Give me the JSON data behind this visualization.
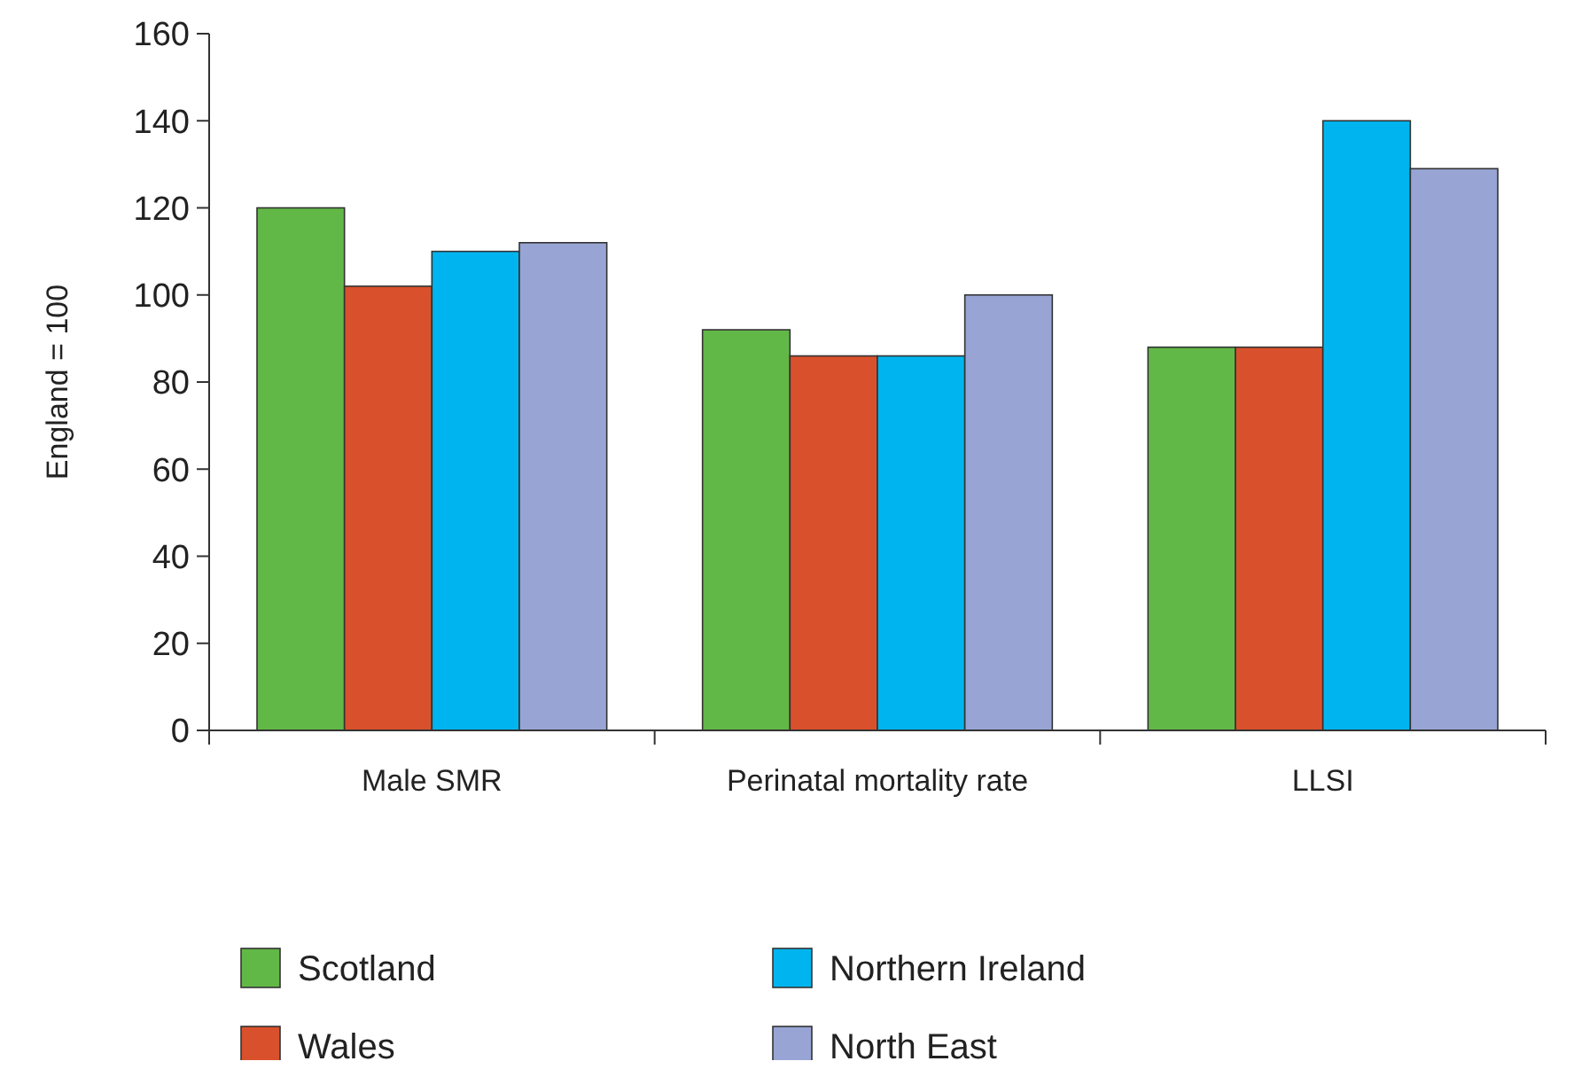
{
  "chart_data": {
    "type": "bar",
    "ylabel": "England = 100",
    "categories": [
      "Male SMR",
      "Perinatal mortality rate",
      "LLSI"
    ],
    "series": [
      {
        "name": "Scotland",
        "color": "#62b847",
        "values": [
          120,
          92,
          88
        ]
      },
      {
        "name": "Wales",
        "color": "#d9512c",
        "values": [
          102,
          86,
          88
        ]
      },
      {
        "name": "Northern Ireland",
        "color": "#00b5ef",
        "values": [
          110,
          86,
          140
        ]
      },
      {
        "name": "North East",
        "color": "#98a5d4",
        "values": [
          112,
          100,
          129
        ]
      }
    ],
    "ylim": [
      0,
      160
    ],
    "yticks": [
      0,
      20,
      40,
      60,
      80,
      100,
      120,
      140,
      160
    ],
    "grid": false,
    "legend": "bottom"
  }
}
